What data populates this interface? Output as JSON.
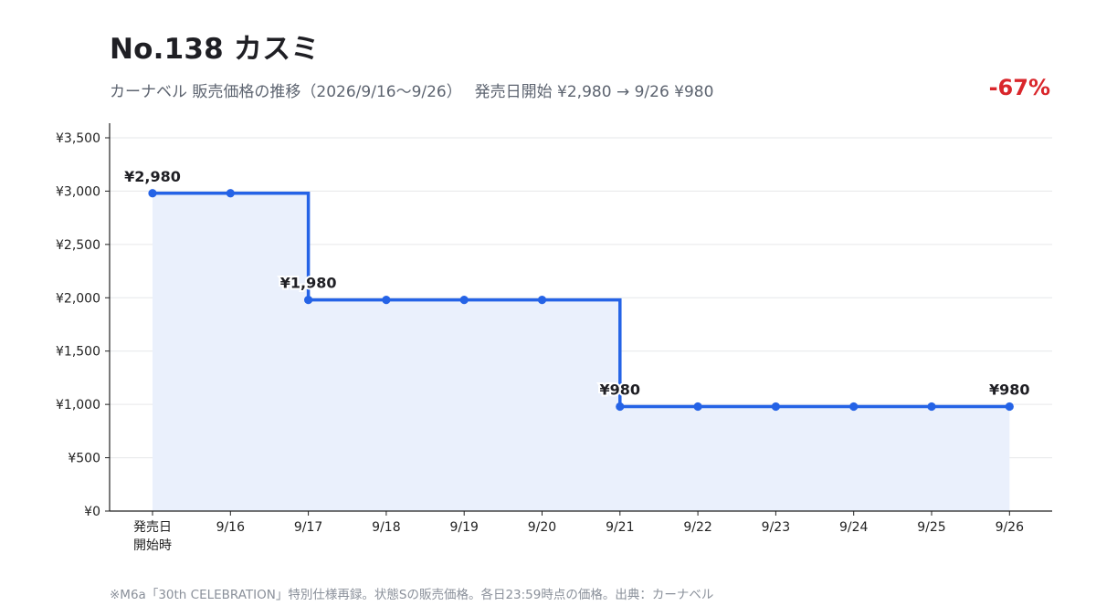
{
  "header": {
    "title": "No.138 カスミ",
    "subtitle": "カーナベル 販売価格の推移（2026/9/16〜9/26）　 発売日開始 ¥2,980 → 9/26 ¥980",
    "change": "-67%"
  },
  "footer": {
    "note": "※M6a「30th CELEBRATION」特別仕様再録。状態Sの販売価格。各日23:59時点の価格。出典：カーナベル"
  },
  "colors": {
    "line": "#2563e6",
    "fill": "#eaf0fc",
    "accent_negative": "#d9262b"
  },
  "chart_data": {
    "type": "line",
    "step": true,
    "categories": [
      "発売日\n開始時",
      "9/16",
      "9/17",
      "9/18",
      "9/19",
      "9/20",
      "9/21",
      "9/22",
      "9/23",
      "9/24",
      "9/25",
      "9/26"
    ],
    "series": [
      {
        "values": [
          2980,
          2980,
          1980,
          1980,
          1980,
          1980,
          980,
          980,
          980,
          980,
          980,
          980
        ]
      }
    ],
    "ylim": [
      0,
      3500
    ],
    "yticks": [
      0,
      500,
      1000,
      1500,
      2000,
      2500,
      3000,
      3500
    ],
    "ytick_labels": [
      "¥0",
      "¥500",
      "¥1,000",
      "¥1,500",
      "¥2,000",
      "¥2,500",
      "¥3,000",
      "¥3,500"
    ],
    "annotations": [
      {
        "index": 0,
        "text": "¥2,980"
      },
      {
        "index": 2,
        "text": "¥1,980"
      },
      {
        "index": 6,
        "text": "¥980"
      },
      {
        "index": 11,
        "text": "¥980"
      }
    ],
    "grid": true,
    "area_fill": true,
    "legend": "none"
  }
}
